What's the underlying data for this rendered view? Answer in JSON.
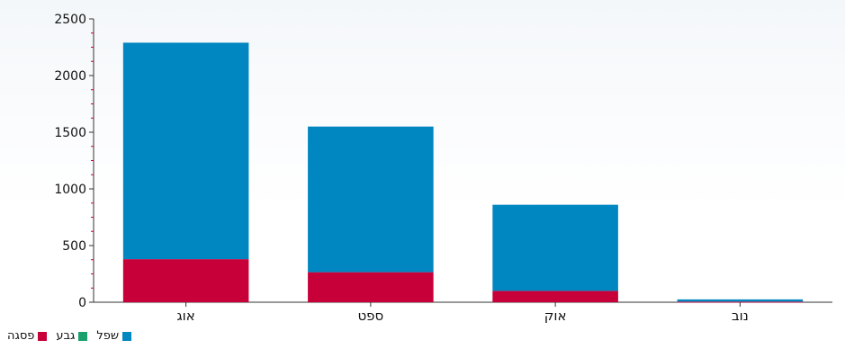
{
  "chart_data": {
    "type": "bar",
    "stacked": true,
    "categories": [
      "אוג",
      "ספט",
      "אוק",
      "נוב"
    ],
    "series": [
      {
        "name": "פסגה",
        "color": "#c8003a",
        "values": [
          380,
          265,
          100,
          5
        ]
      },
      {
        "name": "גבע",
        "color": "#1aa06a",
        "values": [
          0,
          0,
          0,
          0
        ]
      },
      {
        "name": "שפל",
        "color": "#0087c1",
        "values": [
          1910,
          1285,
          760,
          20
        ]
      }
    ],
    "yticks": [
      "0",
      "500",
      "1000",
      "1500",
      "2000",
      "2500"
    ],
    "ylim": [
      0,
      2500
    ],
    "legend_position": "bottom-left"
  }
}
